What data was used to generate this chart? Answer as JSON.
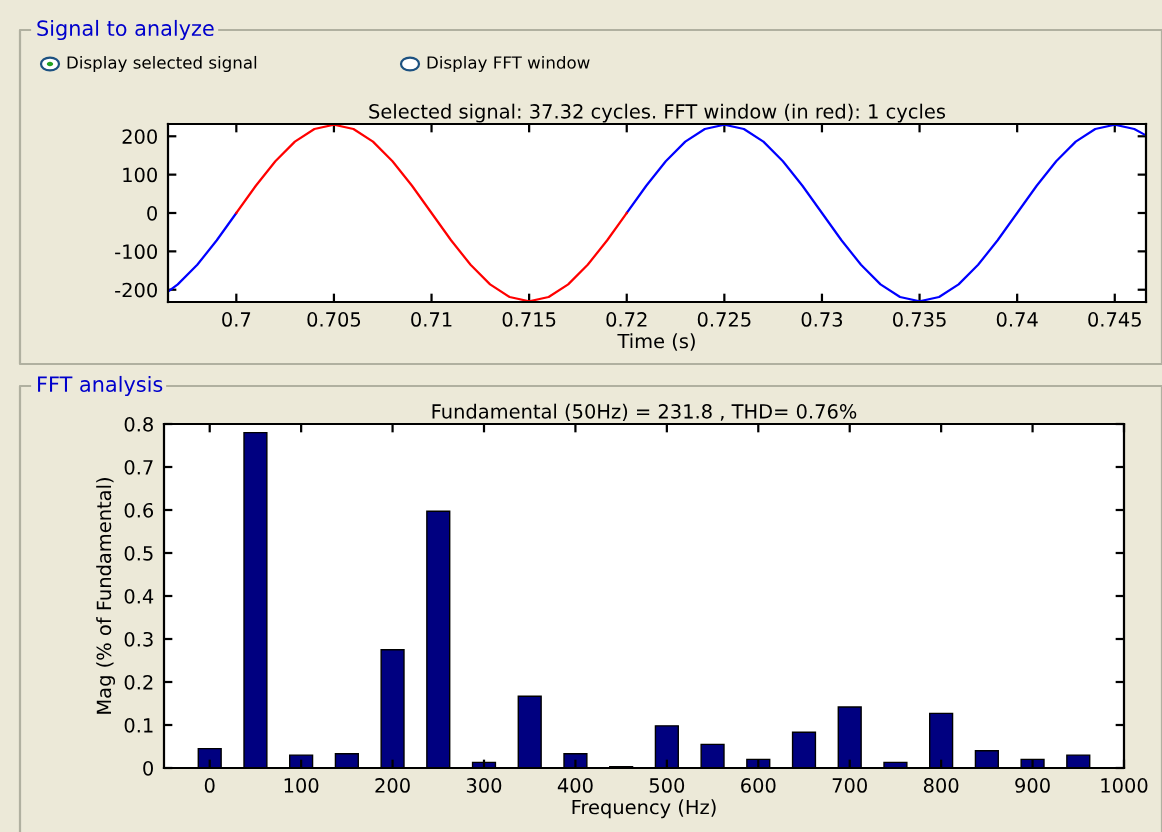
{
  "chart_data": [
    {
      "type": "line",
      "title": "Selected signal: 37.32 cycles. FFT window (in red): 1 cycles",
      "xlabel": "Time (s)",
      "annotations": [
        "Signal to analyze",
        "Display selected signal",
        "Display FFT window"
      ],
      "series": [
        {
          "color": "#0000ff",
          "x": [
            0.6965,
            0.697,
            0.698,
            0.699,
            0.7,
            null,
            0.72,
            0.721,
            0.722,
            0.723,
            0.724,
            0.725,
            0.726,
            0.727,
            0.728,
            0.729,
            0.73,
            0.731,
            0.732,
            0.733,
            0.734,
            0.735,
            0.736,
            0.737,
            0.738,
            0.739,
            0.74,
            0.741,
            0.742,
            0.743,
            0.744,
            0.745,
            0.746,
            0.7465
          ],
          "values": [
            -205,
            -186,
            -135,
            -71,
            0,
            null,
            0,
            71,
            135,
            186,
            219,
            230,
            219,
            186,
            135,
            71,
            0,
            -71,
            -135,
            -186,
            -219,
            -230,
            -219,
            -186,
            -135,
            -71,
            0,
            71,
            135,
            186,
            219,
            230,
            219,
            205
          ]
        },
        {
          "color": "#ff0000",
          "x": [
            0.7,
            0.701,
            0.702,
            0.703,
            0.704,
            0.705,
            0.706,
            0.707,
            0.708,
            0.709,
            0.71,
            0.711,
            0.712,
            0.713,
            0.714,
            0.715,
            0.716,
            0.717,
            0.718,
            0.719,
            0.72
          ],
          "values": [
            0,
            71,
            135,
            186,
            219,
            230,
            219,
            186,
            135,
            71,
            0,
            -71,
            -135,
            -186,
            -219,
            -230,
            -219,
            -186,
            -135,
            -71,
            0
          ]
        }
      ],
      "xlim": [
        0.6965,
        0.7466
      ],
      "xticks": [
        0.7,
        0.705,
        0.71,
        0.715,
        0.72,
        0.725,
        0.73,
        0.735,
        0.74,
        0.745
      ],
      "ylim": [
        -232,
        232
      ],
      "yticks": [
        -200,
        -100,
        0,
        100,
        200
      ],
      "grid": false,
      "legend": false,
      "marker": "none",
      "line_style": "solid"
    },
    {
      "type": "bar",
      "title": "Fundamental (50Hz) = 231.8 , THD= 0.76%",
      "xlabel": "Frequency (Hz)",
      "ylabel": "Mag (% of Fundamental)",
      "annotations": [
        "FFT analysis"
      ],
      "x": [
        0,
        50,
        100,
        150,
        200,
        250,
        300,
        350,
        400,
        450,
        500,
        550,
        600,
        650,
        700,
        750,
        800,
        850,
        900,
        950
      ],
      "values": [
        0.045,
        0.78,
        0.03,
        0.033,
        0.275,
        0.597,
        0.013,
        0.167,
        0.033,
        0.003,
        0.098,
        0.055,
        0.02,
        0.083,
        0.142,
        0.013,
        0.127,
        0.04,
        0.02,
        0.03
      ],
      "color": "#000080",
      "xlim": [
        -50,
        1000
      ],
      "xticks": [
        0,
        100,
        200,
        300,
        400,
        500,
        600,
        700,
        800,
        900,
        1000
      ],
      "ylim": [
        0,
        0.8
      ],
      "yticks": [
        0,
        0.1,
        0.2,
        0.3,
        0.4,
        0.5,
        0.6,
        0.7,
        0.8
      ],
      "grid": false,
      "legend": false
    }
  ]
}
